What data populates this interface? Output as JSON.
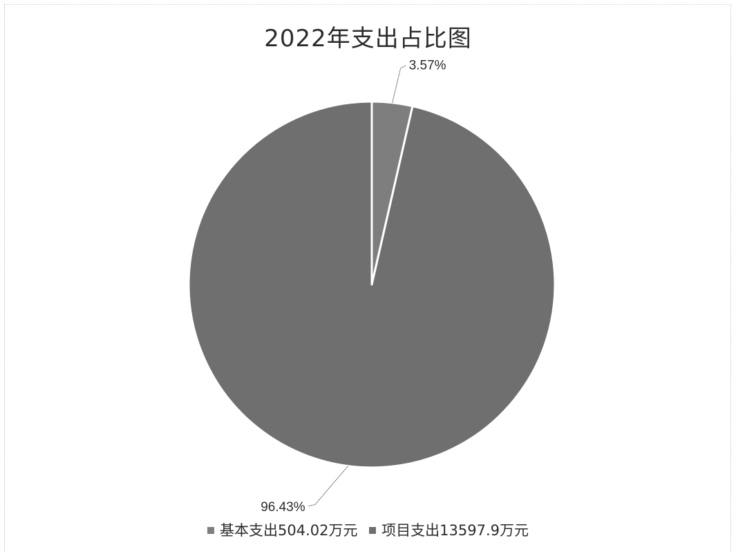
{
  "chart_data": {
    "type": "pie",
    "title": "2022年支出占比图",
    "series": [
      {
        "name": "基本支出",
        "value": 504.02,
        "percent_label": "3.57%",
        "legend_label": "基本支出504.02万元",
        "color": "#7e7e7e"
      },
      {
        "name": "项目支出",
        "value": 13597.9,
        "percent_label": "96.43%",
        "legend_label": "项目支出13597.9万元",
        "color": "#6f6f6f"
      }
    ],
    "legend_position": "bottom",
    "start_angle": "12 o'clock",
    "direction": "clockwise"
  }
}
